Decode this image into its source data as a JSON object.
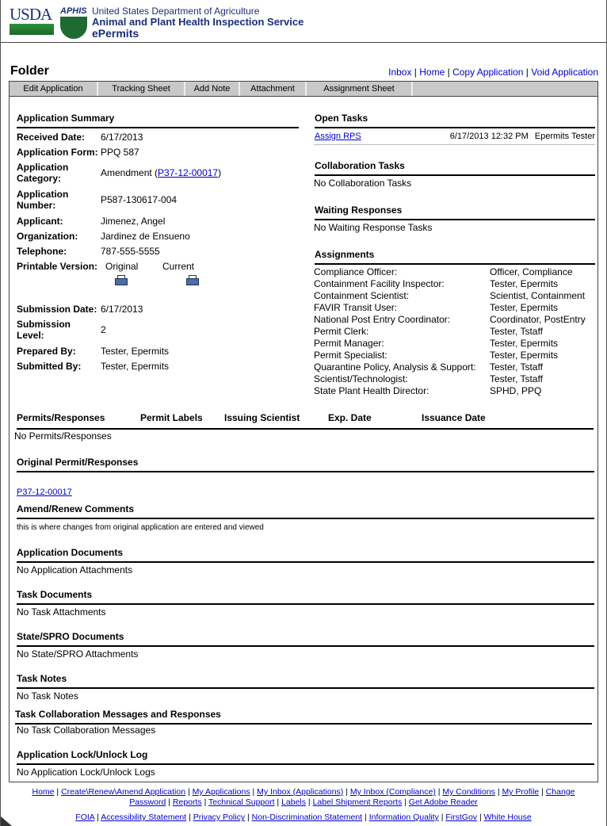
{
  "header": {
    "usda": "USDA",
    "aphis": "APHIS",
    "line1": "United States Department of Agriculture",
    "line2": "Animal and Plant Health Inspection Service",
    "line3": "ePermits"
  },
  "page_title": "Folder",
  "top_links": [
    "Inbox",
    "Home",
    "Copy Application",
    "Void Application"
  ],
  "toolbar": [
    "Edit Application",
    "Tracking Sheet",
    "Add Note",
    "Attachment",
    "Assignment Sheet"
  ],
  "summary": {
    "title": "Application Summary",
    "received_label": "Received Date:",
    "received": "6/17/2013",
    "form_label": "Application Form:",
    "form": "PPQ 587",
    "category_label": "Application Category:",
    "category": "Amendment (",
    "category_link": "P37-12-00017",
    "category_close": ")",
    "number_label": "Application Number:",
    "number": "P587-130617-004",
    "applicant_label": "Applicant:",
    "applicant": "Jimenez, Angel",
    "org_label": "Organization:",
    "org": "Jardinez de Ensueno",
    "tel_label": "Telephone:",
    "tel": "787-555-5555",
    "printable_label": "Printable Version:",
    "original": "Original",
    "current": "Current",
    "subdate_label": "Submission Date:",
    "subdate": "6/17/2013",
    "level_label": "Submission Level:",
    "level": "2",
    "prepared_label": "Prepared By:",
    "prepared": "Tester, Epermits",
    "submitted_label": "Submitted By:",
    "submitted": "Tester, Epermits"
  },
  "open_tasks": {
    "title": "Open Tasks",
    "task": "Assign RPS",
    "date": "6/17/2013 12:32 PM",
    "user": "Epermits Tester"
  },
  "collab": {
    "title": "Collaboration Tasks",
    "empty": "No Collaboration Tasks"
  },
  "waiting": {
    "title": "Waiting Responses",
    "empty": "No Waiting Response Tasks"
  },
  "assignments": {
    "title": "Assignments",
    "items": [
      [
        "Compliance Officer:",
        "Officer, Compliance"
      ],
      [
        "Containment Facility Inspector:",
        "Tester, Epermits"
      ],
      [
        "Containment Scientist:",
        "Scientist, Containment"
      ],
      [
        "FAVIR Transit User:",
        "Tester, Epermits"
      ],
      [
        "National Post Entry Coordinator:",
        "Coordinator, PostEntry"
      ],
      [
        "Permit Clerk:",
        "Tester, Tstaff"
      ],
      [
        "Permit Manager:",
        "Tester, Epermits"
      ],
      [
        "Permit Specialist:",
        "Tester, Epermits"
      ],
      [
        "Quarantine Policy, Analysis & Support:",
        "Tester, Tstaff"
      ],
      [
        "Scientist/Technologist:",
        "Tester, Tstaff"
      ],
      [
        "State Plant Health Director:",
        "SPHD, PPQ"
      ]
    ]
  },
  "permits": {
    "headers": [
      "Permits/Responses",
      "Permit Labels",
      "Issuing Scientist",
      "Exp. Date",
      "Issuance Date"
    ],
    "empty": "No Permits/Responses"
  },
  "original_permit": {
    "title": "Original Permit/Responses",
    "link": "P37-12-00017"
  },
  "amend": {
    "title": "Amend/Renew Comments",
    "text": "this is where changes from original application are entered and viewed"
  },
  "app_docs": {
    "title": "Application Documents",
    "empty": "No Application Attachments"
  },
  "task_docs": {
    "title": "Task Documents",
    "empty": "No Task Attachments"
  },
  "state_docs": {
    "title": "State/SPRO Documents",
    "empty": "No State/SPRO Attachments"
  },
  "task_notes": {
    "title": "Task Notes",
    "empty": "No Task Notes"
  },
  "collab_msgs": {
    "title": "Task Collaboration Messages and Responses",
    "empty": "No Task Collaboration Messages"
  },
  "lock_log": {
    "title": "Application Lock/Unlock Log",
    "empty": "No Application Lock/Unlock Logs"
  },
  "footer": {
    "row1": [
      "Home",
      "Create\\Renew\\Amend Application",
      "My Applications",
      "My Inbox (Applications)",
      "My Inbox (Compliance)",
      "My Conditions",
      "My Profile",
      "Change Password",
      "Reports",
      "Technical Support",
      "Labels",
      "Label Shipment Reports",
      "Get Adobe Reader"
    ],
    "row2": [
      "FOIA",
      "Accessibility Statement",
      "Privacy Policy",
      "Non-Discrimination Statement",
      "Information Quality",
      "FirstGov",
      "White House"
    ]
  }
}
